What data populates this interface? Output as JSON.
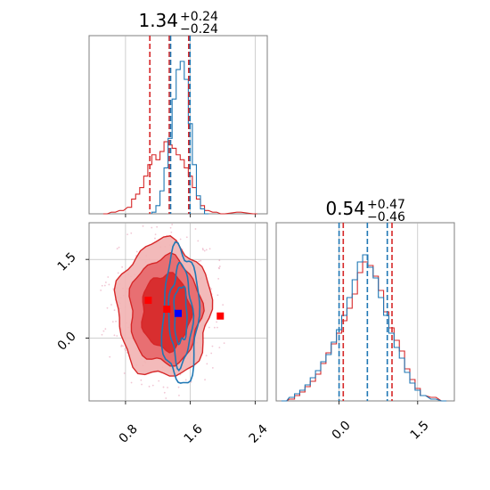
{
  "colors": {
    "red": "#d62728",
    "blue": "#1f77b4",
    "marker_red": "#ff0000",
    "marker_blue": "#0000ff",
    "grid": "#b0b0b0"
  },
  "panels": {
    "p1": {
      "title": {
        "value": "1.34",
        "plus": "+0.24",
        "minus": "−0.24"
      }
    },
    "p3": {
      "title": {
        "value": "0.54",
        "plus": "+0.47",
        "minus": "−0.46"
      }
    },
    "p2": {
      "xticks": [
        "0.8",
        "1.6",
        "2.4"
      ],
      "yticks": [
        "1.5",
        "0.0"
      ]
    },
    "p3_axis": {
      "xticks": [
        "0.0",
        "1.5"
      ]
    }
  },
  "chart_data": [
    {
      "type": "histogram",
      "panel": "param-1 marginal",
      "xlim": [
        0.35,
        2.55
      ],
      "grid": true,
      "series": [
        {
          "name": "",
          "color": "#d62728",
          "x": [
            0.55,
            0.65,
            0.75,
            0.85,
            0.9,
            0.95,
            1.0,
            1.05,
            1.1,
            1.15,
            1.2,
            1.25,
            1.3,
            1.35,
            1.4,
            1.45,
            1.5,
            1.55,
            1.6,
            1.65,
            1.7,
            1.75,
            1.8,
            1.9,
            2.0,
            2.2,
            2.4
          ],
          "density": [
            0.0,
            0.01,
            0.02,
            0.04,
            0.09,
            0.12,
            0.16,
            0.23,
            0.3,
            0.36,
            0.33,
            0.38,
            0.44,
            0.42,
            0.4,
            0.36,
            0.33,
            0.28,
            0.23,
            0.16,
            0.09,
            0.05,
            0.02,
            0.01,
            0.0,
            0.01,
            0.0
          ]
        },
        {
          "name": "",
          "color": "#1f77b4",
          "x": [
            1.15,
            1.2,
            1.25,
            1.3,
            1.35,
            1.4,
            1.45,
            1.5,
            1.55,
            1.6,
            1.65,
            1.7,
            1.75,
            1.8
          ],
          "density": [
            0.01,
            0.05,
            0.14,
            0.28,
            0.46,
            0.7,
            0.88,
            0.93,
            0.82,
            0.55,
            0.3,
            0.11,
            0.03,
            0.0
          ]
        }
      ],
      "quantiles": {
        "red": [
          1.1,
          1.34,
          1.58
        ],
        "blue": [
          1.34,
          1.58
        ]
      }
    },
    {
      "type": "scatter",
      "panel": "param-1 vs param-2 joint",
      "xlim": [
        0.35,
        2.55
      ],
      "ylim": [
        -1.2,
        2.2
      ],
      "xticks": [
        0.8,
        1.6,
        2.4
      ],
      "yticks": [
        1.5,
        0.0
      ],
      "grid": true,
      "contour_levels_red": [
        {
          "cx": 1.27,
          "cy": 0.55,
          "rx": 0.58,
          "ry": 1.3
        },
        {
          "cx": 1.29,
          "cy": 0.52,
          "rx": 0.44,
          "ry": 1.02
        },
        {
          "cx": 1.3,
          "cy": 0.5,
          "rx": 0.3,
          "ry": 0.72
        }
      ],
      "contour_levels_blue": [
        {
          "cx": 1.48,
          "cy": 0.42,
          "rx": 0.22,
          "ry": 1.28
        },
        {
          "cx": 1.48,
          "cy": 0.43,
          "rx": 0.14,
          "ry": 0.92
        },
        {
          "cx": 1.48,
          "cy": 0.45,
          "rx": 0.08,
          "ry": 0.55
        }
      ],
      "markers": [
        {
          "x": 1.08,
          "y": 0.72,
          "color": "#ff0000"
        },
        {
          "x": 1.31,
          "y": 0.55,
          "color": "#ff0000"
        },
        {
          "x": 1.45,
          "y": 0.47,
          "color": "#0000ff"
        },
        {
          "x": 1.97,
          "y": 0.42,
          "color": "#ff0000"
        }
      ]
    },
    {
      "type": "histogram",
      "panel": "param-2 marginal",
      "xlim": [
        -1.2,
        2.2
      ],
      "grid": true,
      "series": [
        {
          "name": "",
          "color": "#d62728",
          "x": [
            -1.05,
            -0.9,
            -0.8,
            -0.7,
            -0.6,
            -0.5,
            -0.4,
            -0.3,
            -0.2,
            -0.1,
            0.0,
            0.1,
            0.2,
            0.3,
            0.4,
            0.5,
            0.6,
            0.7,
            0.8,
            0.9,
            1.0,
            1.1,
            1.2,
            1.3,
            1.4,
            1.5,
            1.6,
            1.8,
            2.0
          ],
          "density": [
            0.0,
            0.01,
            0.03,
            0.05,
            0.08,
            0.11,
            0.15,
            0.21,
            0.27,
            0.32,
            0.38,
            0.45,
            0.52,
            0.6,
            0.72,
            0.78,
            0.76,
            0.7,
            0.62,
            0.5,
            0.41,
            0.34,
            0.28,
            0.18,
            0.12,
            0.07,
            0.03,
            0.02,
            0.0
          ]
        },
        {
          "name": "",
          "color": "#1f77b4",
          "x": [
            -1.05,
            -0.9,
            -0.8,
            -0.7,
            -0.6,
            -0.5,
            -0.4,
            -0.3,
            -0.2,
            -0.1,
            0.0,
            0.1,
            0.2,
            0.3,
            0.4,
            0.5,
            0.6,
            0.7,
            0.8,
            0.9,
            1.0,
            1.1,
            1.2,
            1.3,
            1.4,
            1.5,
            1.6,
            1.8,
            2.0
          ],
          "density": [
            0.0,
            0.02,
            0.04,
            0.06,
            0.09,
            0.13,
            0.17,
            0.22,
            0.26,
            0.33,
            0.4,
            0.48,
            0.58,
            0.68,
            0.78,
            0.82,
            0.75,
            0.69,
            0.58,
            0.48,
            0.38,
            0.3,
            0.24,
            0.16,
            0.1,
            0.06,
            0.03,
            0.01,
            0.0
          ]
        }
      ],
      "quantiles": {
        "red": [
          0.08,
          1.01
        ],
        "blue": [
          0.0,
          0.54,
          0.92
        ]
      }
    }
  ]
}
